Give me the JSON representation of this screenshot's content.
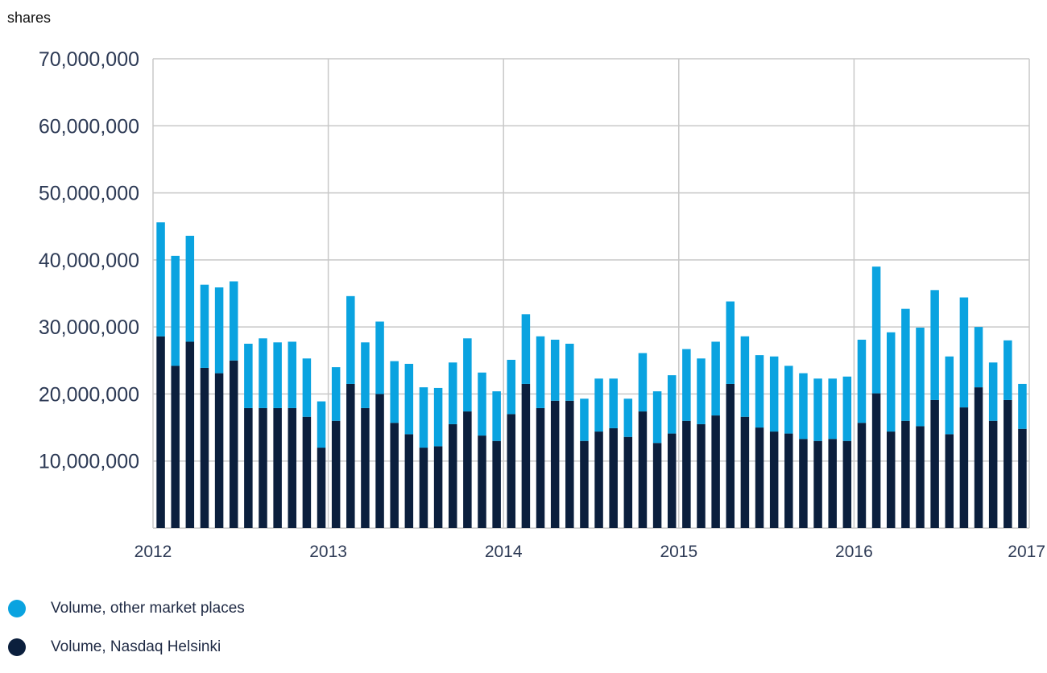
{
  "chart_data": {
    "type": "bar",
    "stacked": true,
    "unit_label": "shares",
    "x_tick_labels": [
      "2012",
      "2013",
      "2014",
      "2015",
      "2016",
      "2017"
    ],
    "y_tick_labels": [
      "10,000,000",
      "20,000,000",
      "30,000,000",
      "40,000,000",
      "50,000,000",
      "60,000,000",
      "70,000,000"
    ],
    "ylim": [
      0,
      70000000
    ],
    "x_range": [
      "2012",
      "2017"
    ],
    "grid": true,
    "legend_position": "bottom-left",
    "series": [
      {
        "name": "Volume, Nasdaq Helsinki",
        "color": "#0b1f3d",
        "values": [
          28600000,
          24200000,
          27800000,
          23900000,
          23100000,
          25000000,
          17900000,
          17900000,
          17900000,
          17900000,
          16600000,
          12000000,
          16000000,
          21500000,
          17900000,
          20000000,
          15700000,
          14000000,
          12000000,
          12200000,
          15500000,
          17400000,
          13800000,
          13000000,
          17000000,
          21500000,
          17900000,
          19000000,
          19000000,
          13000000,
          14400000,
          14900000,
          13600000,
          17400000,
          12700000,
          14100000,
          16000000,
          15500000,
          16800000,
          21500000,
          16600000,
          15000000,
          14400000,
          14100000,
          13300000,
          13000000,
          13300000,
          13000000,
          15700000,
          20100000,
          14400000,
          16000000,
          15200000,
          19100000,
          14000000,
          18000000,
          21000000,
          16000000,
          19100000,
          14800000
        ]
      },
      {
        "name": "Volume, other market places",
        "color": "#0aa3e0",
        "values": [
          17000000,
          16400000,
          15800000,
          12400000,
          12800000,
          11800000,
          9600000,
          10400000,
          9800000,
          9900000,
          8700000,
          6900000,
          8000000,
          13100000,
          9800000,
          10800000,
          9200000,
          10500000,
          9000000,
          8700000,
          9200000,
          10900000,
          9400000,
          7400000,
          8100000,
          10400000,
          10700000,
          9100000,
          8500000,
          6300000,
          7900000,
          7400000,
          5700000,
          8700000,
          7700000,
          8700000,
          10700000,
          9800000,
          11000000,
          12300000,
          12000000,
          10800000,
          11200000,
          10100000,
          9800000,
          9300000,
          9000000,
          9600000,
          12400000,
          18900000,
          14800000,
          16700000,
          14700000,
          16400000,
          11600000,
          16400000,
          9000000,
          8700000,
          8900000,
          6700000
        ]
      }
    ]
  },
  "legend": {
    "items": [
      {
        "label": "Volume, other market places",
        "color": "#0aa3e0"
      },
      {
        "label": "Volume, Nasdaq Helsinki",
        "color": "#0b1f3d"
      }
    ]
  }
}
